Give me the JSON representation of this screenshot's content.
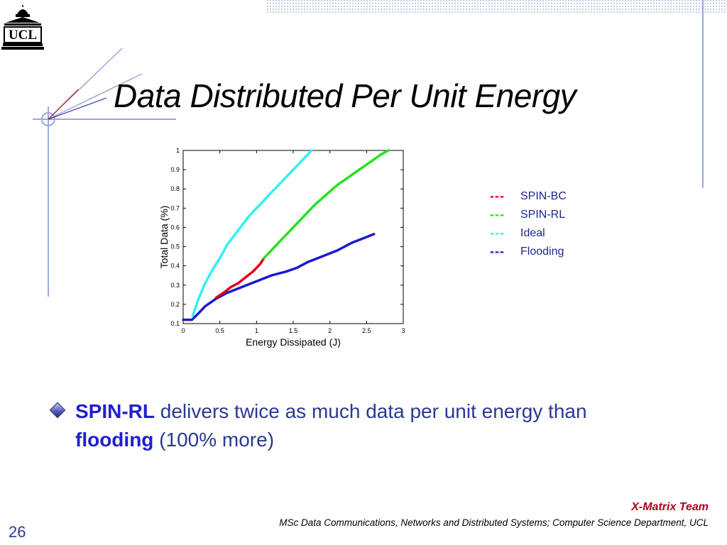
{
  "slide": {
    "title": "Data Distributed Per Unit Energy",
    "logo_text": "UCL",
    "page_number": "26",
    "footer_team": "X-Matrix Team",
    "footer_course": "MSc Data Communications, Networks and Distributed Systems; Computer Science Department, UCL",
    "bullet": {
      "part1": "SPIN-RL",
      "part2": " delivers twice as much data per unit energy than ",
      "part3": "flooding",
      "part4": " (100% more)"
    },
    "legend": [
      {
        "dash": "---",
        "label": "SPIN-BC",
        "color": "#e2001a"
      },
      {
        "dash": "---",
        "label": "SPIN-RL",
        "color": "#22e31c"
      },
      {
        "dash": "---",
        "label": "Ideal",
        "color": "#33f0f0"
      },
      {
        "dash": "---",
        "label": "Flooding",
        "color": "#1a1acc"
      }
    ]
  },
  "chart_data": {
    "type": "line",
    "title": "",
    "xlabel": "Energy Dissipated (J)",
    "ylabel": "Total Data (%)",
    "xlim": [
      0,
      3
    ],
    "ylim": [
      0.1,
      1
    ],
    "grid": false,
    "legend_position": "right",
    "xticks": [
      0,
      0.5,
      1,
      1.5,
      2,
      2.5,
      3
    ],
    "xtick_labels": [
      "0",
      "0.5",
      "1",
      "1.5",
      "2",
      "2.5",
      "3"
    ],
    "yticks": [
      0.1,
      0.2,
      0.3,
      0.4,
      0.5,
      0.6,
      0.7,
      0.8,
      0.9,
      1
    ],
    "ytick_labels": [
      "0.1",
      "0.2",
      "0.3",
      "0.4",
      "0.5",
      "0.6",
      "0.7",
      "0.8",
      "0.9",
      "1"
    ],
    "series": [
      {
        "name": "Flooding",
        "color": "#1a1acc",
        "x": [
          0,
          0.12,
          0.2,
          0.3,
          0.45,
          0.6,
          0.8,
          1.0,
          1.2,
          1.4,
          1.55,
          1.7,
          1.9,
          2.1,
          2.3,
          2.5,
          2.6
        ],
        "y": [
          0.12,
          0.12,
          0.15,
          0.19,
          0.23,
          0.26,
          0.29,
          0.32,
          0.35,
          0.37,
          0.39,
          0.42,
          0.45,
          0.48,
          0.52,
          0.55,
          0.565
        ]
      },
      {
        "name": "Ideal",
        "color": "#33f0f0",
        "x": [
          0.13,
          0.2,
          0.3,
          0.4,
          0.5,
          0.6,
          0.7,
          0.8,
          0.9,
          1.0,
          1.1,
          1.2,
          1.3,
          1.4,
          1.5,
          1.6,
          1.7,
          1.75
        ],
        "y": [
          0.14,
          0.22,
          0.31,
          0.38,
          0.44,
          0.51,
          0.56,
          0.61,
          0.66,
          0.7,
          0.74,
          0.78,
          0.82,
          0.86,
          0.9,
          0.94,
          0.98,
          1.0
        ]
      },
      {
        "name": "SPIN-BC",
        "color": "#e2001a",
        "x": [
          0.45,
          0.55,
          0.65,
          0.75,
          0.85,
          0.95,
          1.05,
          1.1
        ],
        "y": [
          0.235,
          0.26,
          0.29,
          0.31,
          0.34,
          0.37,
          0.41,
          0.44
        ]
      },
      {
        "name": "SPIN-RL",
        "color": "#22e31c",
        "x": [
          1.1,
          1.2,
          1.35,
          1.5,
          1.65,
          1.8,
          1.95,
          2.1,
          2.25,
          2.4,
          2.55,
          2.7,
          2.8
        ],
        "y": [
          0.44,
          0.48,
          0.54,
          0.6,
          0.66,
          0.72,
          0.77,
          0.82,
          0.86,
          0.9,
          0.94,
          0.98,
          1.0
        ]
      }
    ]
  }
}
